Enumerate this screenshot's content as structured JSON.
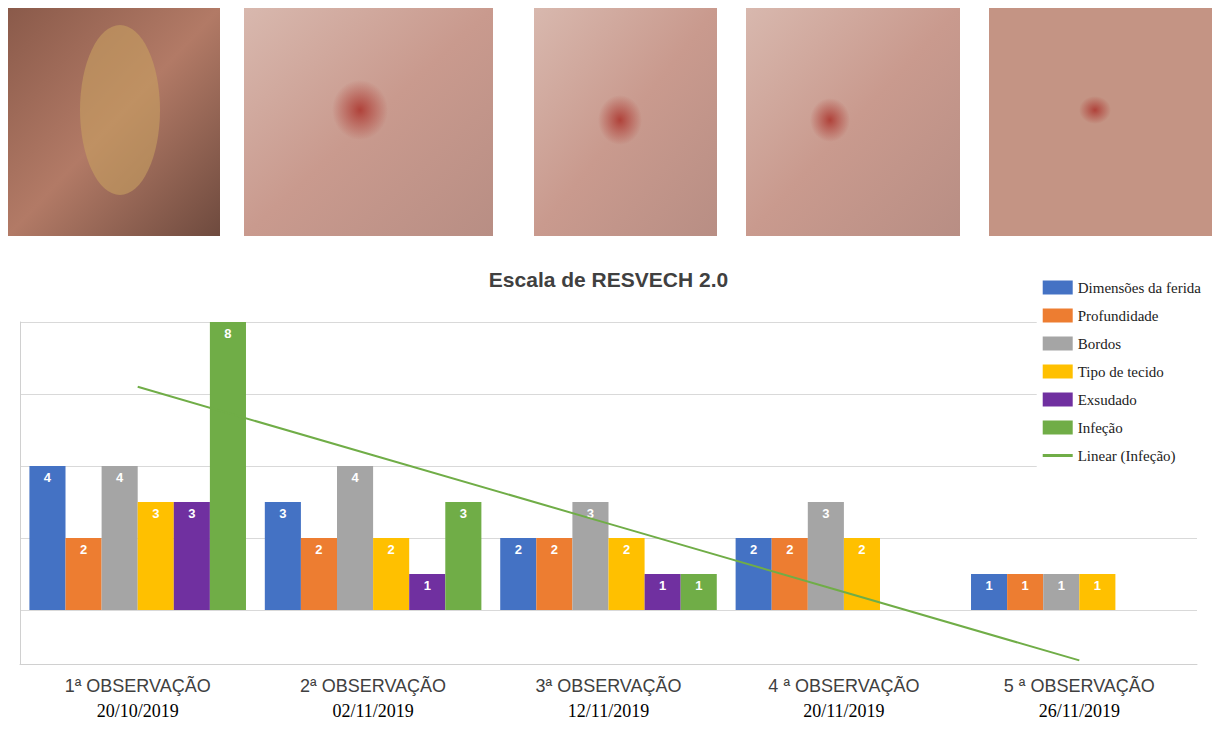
{
  "chart_data": {
    "type": "bar",
    "title": "Escala de RESVECH 2.0",
    "categories": [
      "1ª OBSERVAÇÃO",
      "2ª OBSERVAÇÃO",
      "3ª OBSERVAÇÃO",
      "4 ª OBSERVAÇÃO",
      "5 ª OBSERVAÇÃO"
    ],
    "dates": [
      "20/10/2019",
      "02/11/2019",
      "12/11/2019",
      "20/11/2019",
      "26/11/2019"
    ],
    "series": [
      {
        "name": "Dimensões da ferida",
        "color": "#4472c4",
        "values": [
          4,
          3,
          2,
          2,
          1
        ]
      },
      {
        "name": "Profundidade",
        "color": "#ed7d31",
        "values": [
          2,
          2,
          2,
          2,
          1
        ]
      },
      {
        "name": "Bordos",
        "color": "#a5a5a5",
        "values": [
          4,
          4,
          3,
          3,
          1
        ]
      },
      {
        "name": "Tipo de tecido",
        "color": "#ffc000",
        "values": [
          3,
          2,
          2,
          2,
          1
        ]
      },
      {
        "name": "Exsudado",
        "color": "#7030a0",
        "values": [
          3,
          1,
          1,
          null,
          null
        ]
      },
      {
        "name": "Infeção",
        "color": "#70ad47",
        "values": [
          8,
          3,
          1,
          null,
          null
        ]
      },
      {
        "name": "Linear (Infeção)",
        "color": "#70ad47",
        "type": "line",
        "marker": "none",
        "line_style": "solid",
        "data_labels": false,
        "values": [
          6.2,
          4.3,
          2.4,
          0.5,
          -1.4
        ]
      }
    ],
    "ylim": [
      -1.5,
      8
    ],
    "yticks": [
      0,
      2,
      4,
      6,
      8
    ],
    "grid": true,
    "tick_labels": "x",
    "data_labels": true,
    "legend": "top-right"
  }
}
